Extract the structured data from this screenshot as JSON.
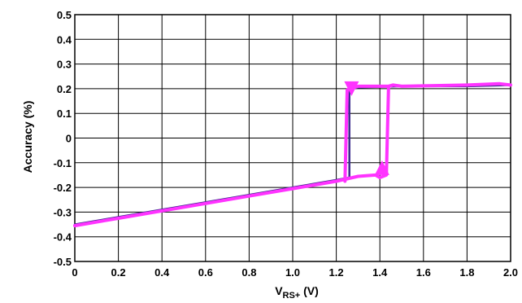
{
  "chart_data": {
    "type": "line",
    "title": "",
    "xlabel": "V",
    "xlabel_sub": "RS+",
    "xlabel_suffix": " (V)",
    "ylabel": "Accuracy (%)",
    "xlim": [
      0,
      2.0
    ],
    "ylim": [
      -0.5,
      0.5
    ],
    "x_ticks": [
      "0",
      "0.2",
      "0.4",
      "0.6",
      "0.8",
      "1.0",
      "1.2",
      "1.4",
      "1.6",
      "1.8",
      "2.0"
    ],
    "y_ticks": [
      "0.5",
      "0.4",
      "0.3",
      "0.2",
      "0.1",
      "0",
      "-0.1",
      "-0.2",
      "-0.3",
      "-0.4",
      "-0.5"
    ],
    "grid": true,
    "legend": "none",
    "series": [
      {
        "color": "#3a2a8c",
        "x": [
          0,
          0.2,
          0.4,
          0.6,
          0.8,
          1.0,
          1.2,
          1.26,
          1.26,
          1.3,
          1.5,
          1.8,
          2.0
        ],
        "y": [
          -0.35,
          -0.32,
          -0.29,
          -0.26,
          -0.23,
          -0.2,
          -0.17,
          -0.16,
          0.2,
          0.205,
          0.21,
          0.21,
          0.215
        ]
      },
      {
        "color": "#ff33ff",
        "x": [
          0,
          0.2,
          0.4,
          0.6,
          0.8,
          1.0,
          1.2,
          1.3,
          1.38,
          1.4,
          1.43,
          1.44,
          1.46,
          1.5,
          1.8,
          1.95,
          2.0
        ],
        "y": [
          -0.355,
          -0.325,
          -0.295,
          -0.265,
          -0.235,
          -0.205,
          -0.175,
          -0.155,
          -0.15,
          -0.16,
          -0.15,
          0.21,
          0.215,
          0.21,
          0.215,
          0.22,
          0.215
        ]
      },
      {
        "color": "#ff33ff",
        "x": [
          1.46,
          1.44,
          1.3,
          1.28,
          1.25,
          1.24
        ],
        "y": [
          0.215,
          0.21,
          0.21,
          0.205,
          0.195,
          -0.175
        ]
      }
    ],
    "arrows": [
      {
        "x": 1.27,
        "y": 0.2,
        "direction": "down",
        "color": "#ff33ff"
      },
      {
        "x": 1.41,
        "y": -0.12,
        "direction": "up",
        "color": "#ff33ff"
      }
    ]
  }
}
